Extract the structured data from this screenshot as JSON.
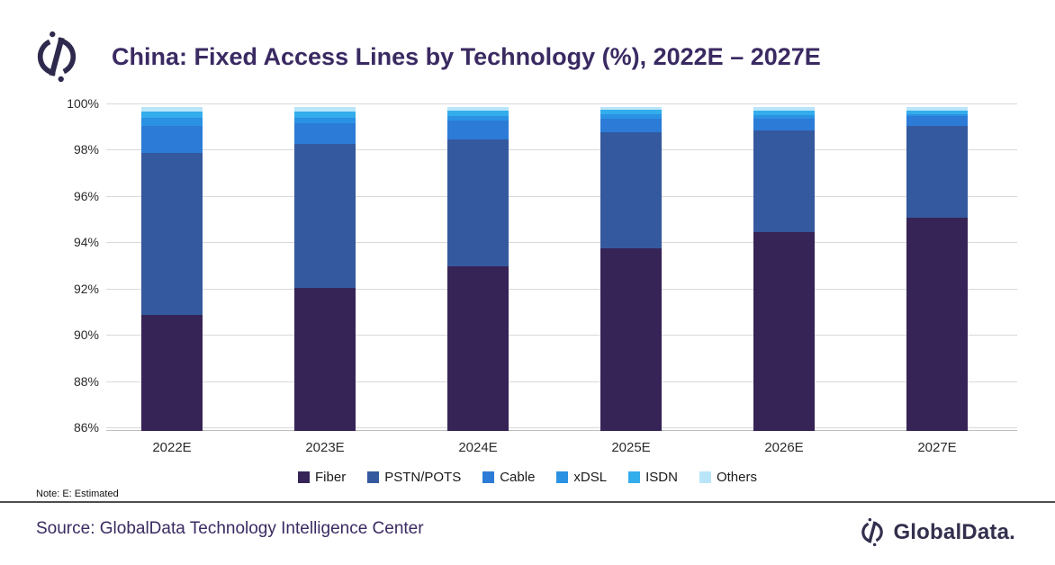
{
  "header": {
    "title": "China: Fixed Access Lines by Technology (%), 2022E – 2027E",
    "logo_icon": "globaldata-circle-slash-icon"
  },
  "chart_data": {
    "type": "bar",
    "stacked": true,
    "title": "China: Fixed Access Lines by Technology (%), 2022E – 2027E",
    "categories": [
      "2022E",
      "2023E",
      "2024E",
      "2025E",
      "2026E",
      "2027E"
    ],
    "series": [
      {
        "name": "Fiber",
        "color": "#362457",
        "values": [
          91.0,
          92.2,
          93.1,
          93.9,
          94.6,
          95.2
        ]
      },
      {
        "name": "PSTN/POTS",
        "color": "#35599e",
        "values": [
          7.0,
          6.2,
          5.5,
          5.0,
          4.4,
          4.0
        ]
      },
      {
        "name": "Cable",
        "color": "#2c7bd7",
        "values": [
          1.2,
          0.9,
          0.8,
          0.6,
          0.5,
          0.4
        ]
      },
      {
        "name": "xDSL",
        "color": "#2b91e2",
        "values": [
          0.35,
          0.25,
          0.2,
          0.2,
          0.15,
          0.1
        ]
      },
      {
        "name": "ISDN",
        "color": "#33adec",
        "values": [
          0.25,
          0.25,
          0.25,
          0.2,
          0.2,
          0.15
        ]
      },
      {
        "name": "Others",
        "color": "#b9e5f9",
        "values": [
          0.2,
          0.2,
          0.15,
          0.1,
          0.15,
          0.15
        ]
      }
    ],
    "ylabel": "",
    "xlabel": "",
    "ylim": [
      86,
      100
    ],
    "ytick_step": 2,
    "ytick_suffix": "%",
    "grid": true,
    "legend_position": "bottom"
  },
  "note": {
    "text": "Note:  E: Estimated"
  },
  "footer": {
    "source": "Source: GlobalData Technology Intelligence Center",
    "brand": "GlobalData."
  },
  "colors": {
    "title": "#3a2a62",
    "gridline": "#d9d9d9",
    "axis_text": "#2b2b2b",
    "divider": "#4d4d4d",
    "brand": "#33304e"
  }
}
